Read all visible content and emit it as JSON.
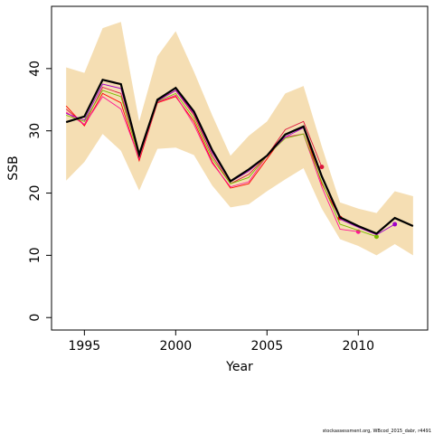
{
  "chart_data": {
    "type": "line",
    "x_label": "Year",
    "y_label": "SSB",
    "footer": "stockassessment.org, WBcod_2015_dabr, r4491",
    "x": [
      1994,
      1995,
      1996,
      1997,
      1998,
      1999,
      2000,
      2001,
      2002,
      2003,
      2004,
      2005,
      2006,
      2007,
      2008,
      2009,
      2010,
      2011,
      2012,
      2013
    ],
    "band": {
      "color": "#f5deb3",
      "upper": [
        40.2,
        39.3,
        46.5,
        47.5,
        31.5,
        42,
        46,
        39.5,
        32.5,
        26,
        29.2,
        31.5,
        36,
        37.2,
        27.5,
        18.5,
        17.5,
        16.8,
        20.3,
        19.5
      ],
      "lower": [
        22,
        25,
        29.5,
        26.8,
        20.4,
        27.1,
        27.3,
        26.1,
        21.2,
        17.7,
        18.2,
        20.3,
        22.2,
        24,
        17.5,
        12.6,
        11.5,
        10,
        11.8,
        10
      ]
    },
    "series": [
      {
        "color": "#dc143c",
        "values": [
          33.5,
          31,
          37,
          36,
          25.5,
          34.8,
          36.5,
          32.5,
          26,
          21.5,
          23,
          26,
          30.2,
          31.5,
          24.2,
          null,
          null,
          null,
          null,
          null
        ]
      },
      {
        "color": "#ff0000",
        "values": [
          34,
          30.8,
          36,
          34.5,
          25.2,
          34.5,
          35.5,
          31.5,
          25,
          20.8,
          21.5,
          25.5,
          29.5,
          30.5,
          21.5,
          16,
          null,
          null,
          null,
          null
        ]
      },
      {
        "color": "#ff1493",
        "values": [
          33,
          31,
          35.5,
          33.5,
          25.5,
          34.6,
          35.7,
          31,
          24.8,
          21,
          21.8,
          26,
          29,
          29.5,
          21,
          14.2,
          13.8,
          null,
          null,
          null
        ]
      },
      {
        "color": "#7cbb00",
        "values": [
          32.5,
          31.5,
          36.5,
          35.5,
          25.8,
          34.7,
          36,
          32,
          25.5,
          21.5,
          22.5,
          26,
          28.8,
          29.5,
          21.8,
          15,
          14,
          13,
          null,
          null
        ]
      },
      {
        "color": "#a000c8",
        "values": [
          32.8,
          31.7,
          37.5,
          36.8,
          26,
          34.8,
          36.5,
          32.8,
          26.5,
          21.8,
          23.5,
          26,
          29,
          30.5,
          22.5,
          15.8,
          14.5,
          13.3,
          15,
          null
        ]
      },
      {
        "color": "#000000",
        "values": [
          31.4,
          32.3,
          38.2,
          37.5,
          26.2,
          35,
          36.9,
          33.1,
          26.9,
          21.9,
          23.8,
          26,
          29.4,
          30.7,
          22.7,
          16.1,
          14.7,
          13.5,
          16,
          14.7
        ]
      }
    ],
    "xlim": [
      1993.2,
      2013.8
    ],
    "ylim": [
      -2,
      50
    ],
    "xticks": [
      1995,
      2000,
      2005,
      2010
    ],
    "yticks": [
      0,
      10,
      20,
      30,
      40
    ]
  }
}
